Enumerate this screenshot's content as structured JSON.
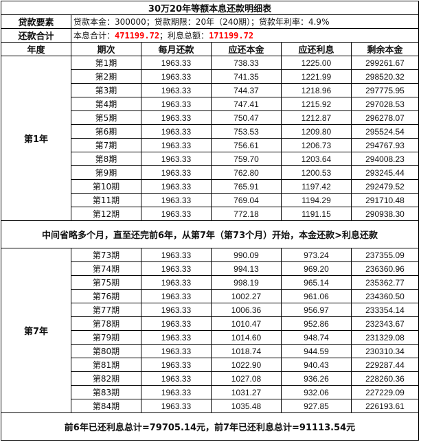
{
  "title": "30万20年等额本息还款明细表",
  "loan_label": "贷款要素",
  "loan_text": "贷款本金：300000；贷款期限：20年（240期）；贷款年利率：4.9%",
  "total_label": "还款合计",
  "total_prefix": "本息合计：",
  "total_value": "471199.72",
  "interest_prefix": "；利息总额：",
  "interest_value": "171199.72",
  "highlight_color": "#ff0000",
  "headers": [
    "年度",
    "期次",
    "每月还款",
    "应还本金",
    "应还利息",
    "剩余本金"
  ],
  "year1": {
    "label": "第1年",
    "rows": [
      [
        "第1期",
        "1963.33",
        "738.33",
        "1225.00",
        "299261.67"
      ],
      [
        "第2期",
        "1963.33",
        "741.35",
        "1221.99",
        "298520.32"
      ],
      [
        "第3期",
        "1963.33",
        "744.37",
        "1218.96",
        "297775.95"
      ],
      [
        "第4期",
        "1963.33",
        "747.41",
        "1215.92",
        "297028.53"
      ],
      [
        "第5期",
        "1963.33",
        "750.47",
        "1212.87",
        "296278.07"
      ],
      [
        "第6期",
        "1963.33",
        "753.53",
        "1209.80",
        "295524.54"
      ],
      [
        "第7期",
        "1963.33",
        "756.61",
        "1206.73",
        "294767.93"
      ],
      [
        "第8期",
        "1963.33",
        "759.70",
        "1203.64",
        "294008.23"
      ],
      [
        "第9期",
        "1963.33",
        "762.80",
        "1200.53",
        "293245.44"
      ],
      [
        "第10期",
        "1963.33",
        "765.91",
        "1197.42",
        "292479.52"
      ],
      [
        "第11期",
        "1963.33",
        "769.04",
        "1194.29",
        "291710.48"
      ],
      [
        "第12期",
        "1963.33",
        "772.18",
        "1191.15",
        "290938.30"
      ]
    ]
  },
  "note": "中间省略多个月，直至还完前6年，从第7年（第73个月）开始，本金还款>利息还款",
  "year7": {
    "label": "第7年",
    "rows": [
      [
        "第73期",
        "1963.33",
        "990.09",
        "973.24",
        "237355.09"
      ],
      [
        "第74期",
        "1963.33",
        "994.13",
        "969.20",
        "236360.96"
      ],
      [
        "第75期",
        "1963.33",
        "998.19",
        "965.14",
        "235362.77"
      ],
      [
        "第76期",
        "1963.33",
        "1002.27",
        "961.06",
        "234360.50"
      ],
      [
        "第77期",
        "1963.33",
        "1006.36",
        "956.97",
        "233354.14"
      ],
      [
        "第78期",
        "1963.33",
        "1010.47",
        "952.86",
        "232343.67"
      ],
      [
        "第79期",
        "1963.33",
        "1014.60",
        "948.74",
        "231329.08"
      ],
      [
        "第80期",
        "1963.33",
        "1018.74",
        "944.59",
        "230310.34"
      ],
      [
        "第81期",
        "1963.33",
        "1022.90",
        "940.43",
        "229287.44"
      ],
      [
        "第82期",
        "1963.33",
        "1027.08",
        "936.26",
        "228260.36"
      ],
      [
        "第83期",
        "1963.33",
        "1031.27",
        "932.06",
        "227229.09"
      ],
      [
        "第84期",
        "1963.33",
        "1035.48",
        "927.85",
        "226193.61"
      ]
    ]
  },
  "footer": "前6年已还利息总计=79705.14元，前7年已还利息总计=91113.54元"
}
